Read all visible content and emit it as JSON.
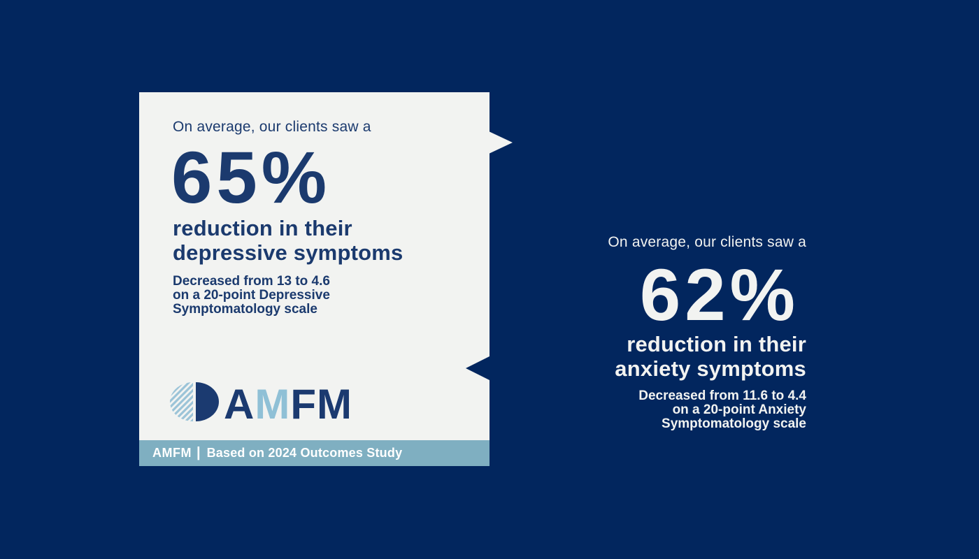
{
  "colors": {
    "background_navy": "#02265E",
    "card_background": "#F2F3F1",
    "card_text_navy": "#1B3A6E",
    "attribution_bar_blue": "#7FAFC1",
    "logo_light_blue": "#9CC4D8",
    "panel_text_white": "#F2F3F1"
  },
  "depression_card": {
    "intro": "On average, our clients saw a",
    "stat_value": "65%",
    "headline_line1": "reduction in their",
    "headline_line2": "depressive symptoms",
    "detail": {
      "prefix": "Decreased from",
      "from_value": "13",
      "connector": "to",
      "to_value": "4.6",
      "line2": "on a 20-point Depressive",
      "line3": "Symptomatology scale"
    },
    "logo": {
      "letters": [
        {
          "char": "A",
          "tone": "navy"
        },
        {
          "char": "M",
          "tone": "light-blue"
        },
        {
          "char": "F",
          "tone": "navy"
        },
        {
          "char": "M",
          "tone": "navy"
        }
      ]
    },
    "attribution": {
      "brand": "AMFM",
      "divider": "|",
      "text": "Based on 2024 Outcomes Study"
    }
  },
  "anxiety_panel": {
    "intro": "On average, our clients saw a",
    "stat_value": "62%",
    "headline_line1": "reduction in their",
    "headline_line2": "anxiety symptoms",
    "detail": {
      "prefix": "Decreased from",
      "from_value": "11.6",
      "connector": "to",
      "to_value": "4.4",
      "line2": "on a 20-point Anxiety",
      "line3": "Symptomatology scale"
    }
  }
}
